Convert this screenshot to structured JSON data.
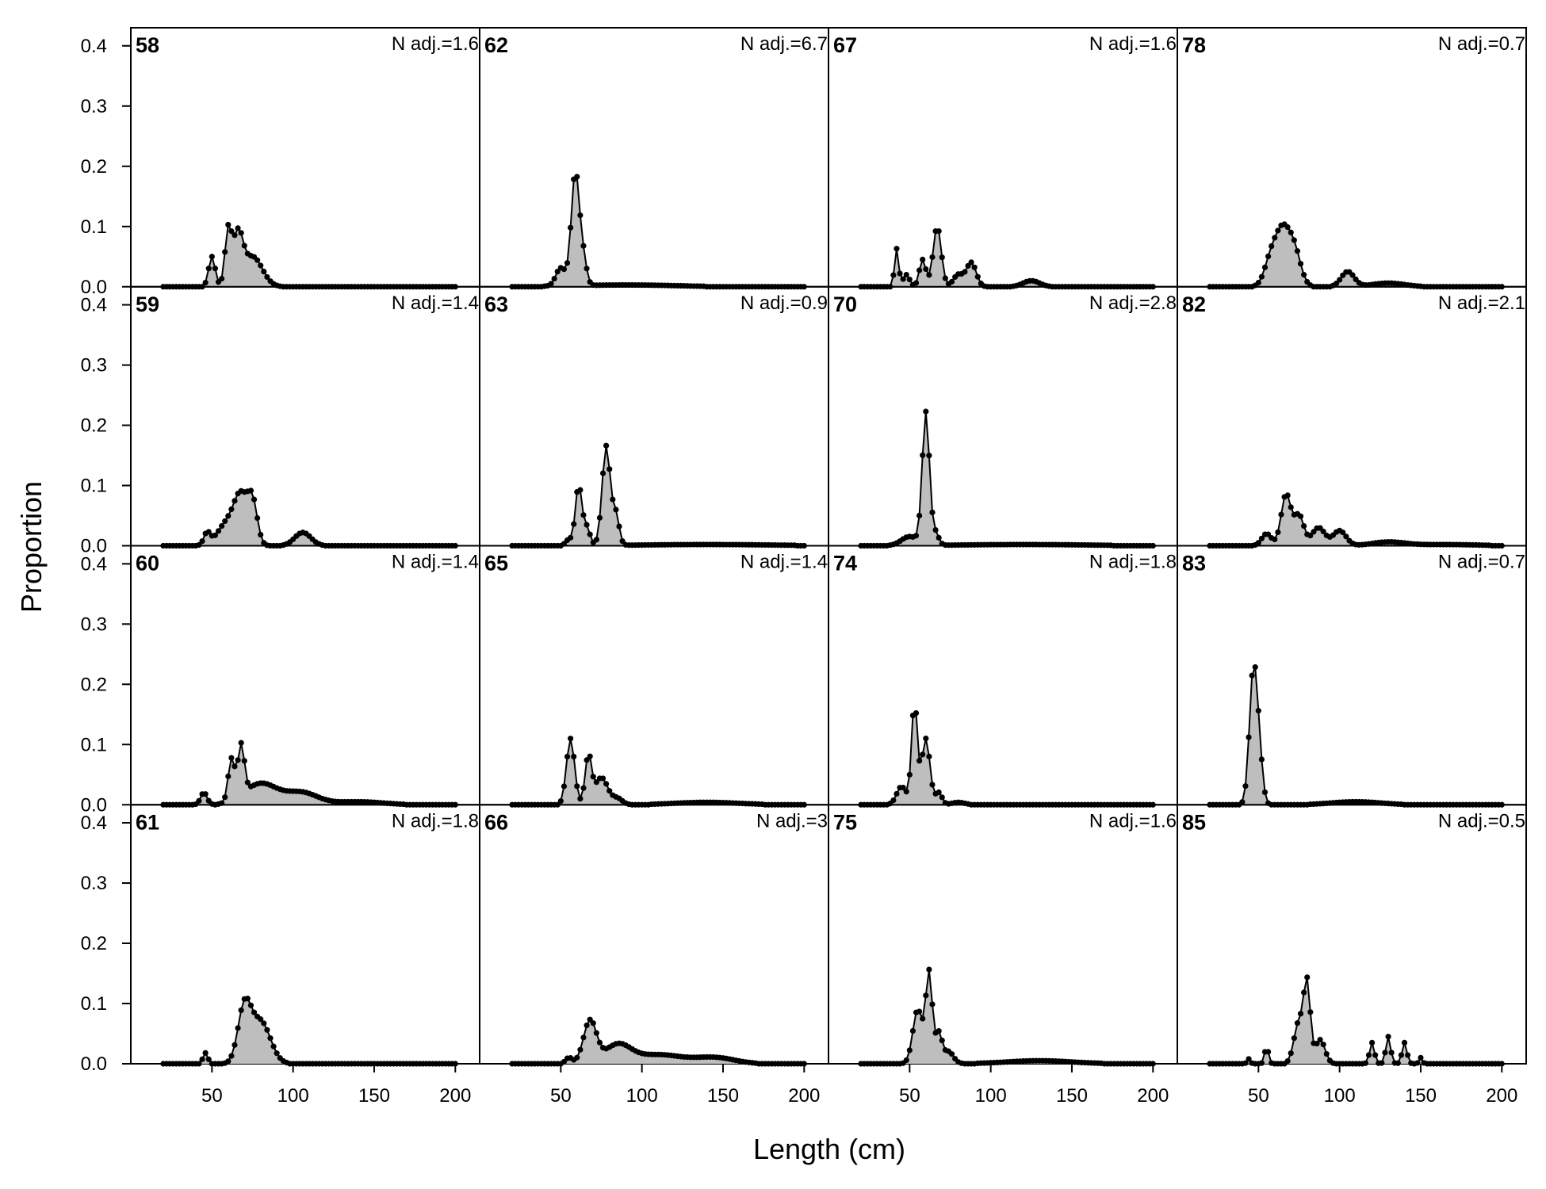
{
  "chart_data": {
    "type": "area",
    "xlabel": "Length (cm)",
    "ylabel": "Proportion",
    "xlim": [
      0,
      215
    ],
    "ylim": [
      0,
      0.43
    ],
    "x_ticks": [
      50,
      100,
      150,
      200
    ],
    "x_tick_labels": [
      "50",
      "100",
      "150",
      "200"
    ],
    "y_ticks": [
      0.0,
      0.1,
      0.2,
      0.3,
      0.4
    ],
    "y_tick_labels": [
      "0.0",
      "0.1",
      "0.2",
      "0.3",
      "0.4"
    ],
    "bin_start": 20,
    "bin_width": 2,
    "fill_color": "#bebebe",
    "line_color": "#000000",
    "layout": {
      "columns": 4,
      "rows": 4,
      "order": "column-major"
    },
    "panels": [
      {
        "id": "58",
        "n_adj_label": "N adj.=1.6",
        "peaks": [
          [
            50,
            0.05,
            2
          ],
          [
            60,
            0.09,
            2
          ],
          [
            66,
            0.08,
            3
          ],
          [
            75,
            0.05,
            6
          ]
        ]
      },
      {
        "id": "59",
        "n_adj_label": "N adj.=1.4",
        "peaks": [
          [
            47,
            0.02,
            2
          ],
          [
            60,
            0.04,
            6
          ],
          [
            68,
            0.07,
            4
          ],
          [
            75,
            0.07,
            3
          ],
          [
            106,
            0.022,
            5
          ]
        ]
      },
      {
        "id": "60",
        "n_adj_label": "N adj.=1.4",
        "peaks": [
          [
            45,
            0.02,
            2
          ],
          [
            62,
            0.07,
            2
          ],
          [
            68,
            0.085,
            2
          ],
          [
            80,
            0.035,
            10
          ],
          [
            105,
            0.02,
            10
          ],
          [
            140,
            0.005,
            15
          ]
        ]
      },
      {
        "id": "61",
        "n_adj_label": "N adj.=1.8",
        "peaks": [
          [
            46,
            0.018,
            1.5
          ],
          [
            70,
            0.09,
            4
          ],
          [
            80,
            0.07,
            6
          ]
        ]
      },
      {
        "id": "62",
        "n_adj_label": "N adj.=6.7",
        "peaks": [
          [
            50,
            0.03,
            3
          ],
          [
            59,
            0.19,
            2.5
          ],
          [
            64,
            0.04,
            2
          ],
          [
            90,
            0.003,
            30
          ]
        ]
      },
      {
        "id": "63",
        "n_adj_label": "N adj.=0.9",
        "peaks": [
          [
            55,
            0.01,
            2
          ],
          [
            61,
            0.1,
            2
          ],
          [
            66,
            0.03,
            2
          ],
          [
            78,
            0.165,
            2.5
          ],
          [
            84,
            0.05,
            2
          ],
          [
            140,
            0.002,
            40
          ]
        ]
      },
      {
        "id": "65",
        "n_adj_label": "N adj.=1.4",
        "peaks": [
          [
            56,
            0.11,
            2.5
          ],
          [
            67,
            0.08,
            2
          ],
          [
            75,
            0.045,
            4
          ],
          [
            85,
            0.01,
            3
          ],
          [
            140,
            0.004,
            20
          ]
        ]
      },
      {
        "id": "66",
        "n_adj_label": "N adj.=3",
        "peaks": [
          [
            55,
            0.01,
            2
          ],
          [
            68,
            0.07,
            4
          ],
          [
            85,
            0.03,
            8
          ],
          [
            110,
            0.015,
            15
          ],
          [
            145,
            0.01,
            12
          ]
        ]
      },
      {
        "id": "67",
        "n_adj_label": "N adj.=1.6",
        "peaks": [
          [
            42,
            0.063,
            1.3
          ],
          [
            48,
            0.02,
            2
          ],
          [
            58,
            0.045,
            2
          ],
          [
            67,
            0.1,
            2.5
          ],
          [
            80,
            0.02,
            3
          ],
          [
            88,
            0.04,
            3
          ],
          [
            125,
            0.01,
            5
          ]
        ]
      },
      {
        "id": "70",
        "n_adj_label": "N adj.=2.8",
        "peaks": [
          [
            50,
            0.015,
            5
          ],
          [
            60,
            0.22,
            2.2
          ],
          [
            66,
            0.02,
            2
          ],
          [
            120,
            0.002,
            40
          ]
        ]
      },
      {
        "id": "74",
        "n_adj_label": "N adj.=1.8",
        "peaks": [
          [
            45,
            0.03,
            3
          ],
          [
            53,
            0.17,
            1.8
          ],
          [
            60,
            0.11,
            2.5
          ],
          [
            68,
            0.02,
            2
          ],
          [
            80,
            0.004,
            4
          ]
        ]
      },
      {
        "id": "75",
        "n_adj_label": "N adj.=1.6",
        "peaks": [
          [
            55,
            0.09,
            3
          ],
          [
            62,
            0.15,
            2
          ],
          [
            68,
            0.05,
            2
          ],
          [
            74,
            0.02,
            3
          ],
          [
            130,
            0.005,
            20
          ]
        ]
      },
      {
        "id": "78",
        "n_adj_label": "N adj.=0.7",
        "peaks": [
          [
            58,
            0.05,
            4
          ],
          [
            65,
            0.08,
            4
          ],
          [
            72,
            0.06,
            4
          ],
          [
            105,
            0.025,
            4
          ],
          [
            130,
            0.006,
            10
          ]
        ]
      },
      {
        "id": "82",
        "n_adj_label": "N adj.=2.1",
        "peaks": [
          [
            55,
            0.02,
            3
          ],
          [
            67,
            0.085,
            3
          ],
          [
            75,
            0.05,
            3
          ],
          [
            87,
            0.03,
            4
          ],
          [
            100,
            0.025,
            4
          ],
          [
            130,
            0.006,
            10
          ],
          [
            165,
            0.002,
            20
          ]
        ]
      },
      {
        "id": "83",
        "n_adj_label": "N adj.=0.7",
        "peaks": [
          [
            47,
            0.23,
            2.5
          ],
          [
            51,
            0.05,
            2
          ],
          [
            110,
            0.005,
            15
          ]
        ]
      },
      {
        "id": "85",
        "n_adj_label": "N adj.=0.5",
        "peaks": [
          [
            44,
            0.008,
            1
          ],
          [
            55,
            0.028,
            1.2
          ],
          [
            75,
            0.07,
            3
          ],
          [
            80,
            0.125,
            2
          ],
          [
            88,
            0.04,
            3
          ],
          [
            120,
            0.035,
            1.5
          ],
          [
            130,
            0.045,
            1.5
          ],
          [
            140,
            0.035,
            1.5
          ],
          [
            150,
            0.01,
            1
          ]
        ]
      }
    ]
  }
}
